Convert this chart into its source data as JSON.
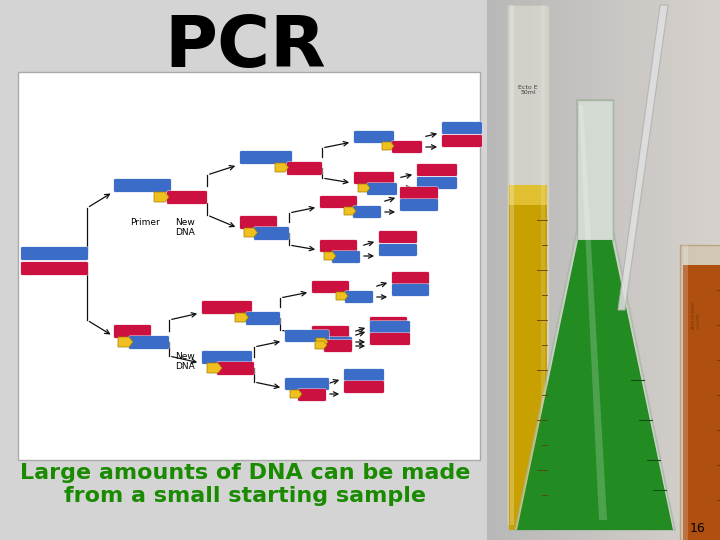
{
  "title": "PCR",
  "title_fontsize": 52,
  "subtitle_line1": "Large amounts of DNA can be made",
  "subtitle_line2": "from a small starting sample",
  "subtitle_color": "#1A8B00",
  "subtitle_fontsize": 16,
  "page_number": "16",
  "background_color": "#D4D4D4",
  "diagram_bg": "#FFFFFF",
  "blue_color": "#3B6CC7",
  "red_color": "#CC1040",
  "yellow_color": "#F0C020",
  "arrow_color": "#111111",
  "photo_bg": "#C0BEB8",
  "cylinder_yellow": "#C8A800",
  "cylinder_glass": "#E8E8E0",
  "flask_green": "#2A7A2A",
  "flask_glass": "#B8C8B0",
  "beaker_amber": "#B05010",
  "pipette_glass": "#D8D8D8"
}
